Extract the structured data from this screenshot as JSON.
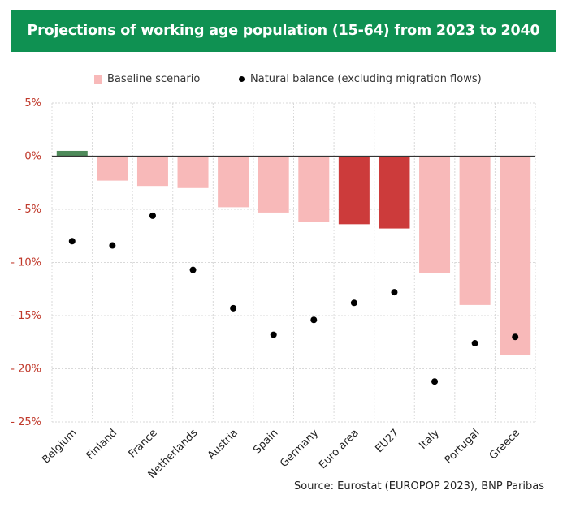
{
  "title": "Projections of working age population (15-64) from 2023 to 2040",
  "source": "Source: Eurostat (EUROPOP 2023), BNP Paribas",
  "colors": {
    "header_bg": "#0f9152",
    "baseline_bar": "#f8b9b9",
    "highlight_bar": "#cc3b3b",
    "positive_bar": "#4e8a5a",
    "dot": "#000000"
  },
  "chart_data": {
    "type": "bar",
    "categories": [
      "Belgium",
      "Finland",
      "France",
      "Netherlands",
      "Austria",
      "Spain",
      "Germany",
      "Euro area",
      "EU27",
      "Italy",
      "Portugal",
      "Greece"
    ],
    "series": [
      {
        "name": "Baseline scenario",
        "type": "bar",
        "values": [
          0.5,
          -2.3,
          -2.8,
          -3.0,
          -4.8,
          -5.3,
          -6.2,
          -6.4,
          -6.8,
          -11.0,
          -14.0,
          -18.7
        ]
      },
      {
        "name": "Natural balance (excluding migration flows)",
        "type": "scatter",
        "values": [
          -8.0,
          -8.4,
          -5.6,
          -10.7,
          -14.3,
          -16.8,
          -15.4,
          -13.8,
          -12.8,
          -21.2,
          -17.6,
          -17.0
        ]
      }
    ],
    "highlighted_categories": [
      "Euro area",
      "EU27"
    ],
    "y_ticks": [
      "5%",
      "0%",
      "- 5%",
      "- 10%",
      "- 15%",
      "- 20%",
      "- 25%"
    ],
    "ylim": [
      -25,
      5
    ],
    "grid": true,
    "legend_position": "top"
  }
}
